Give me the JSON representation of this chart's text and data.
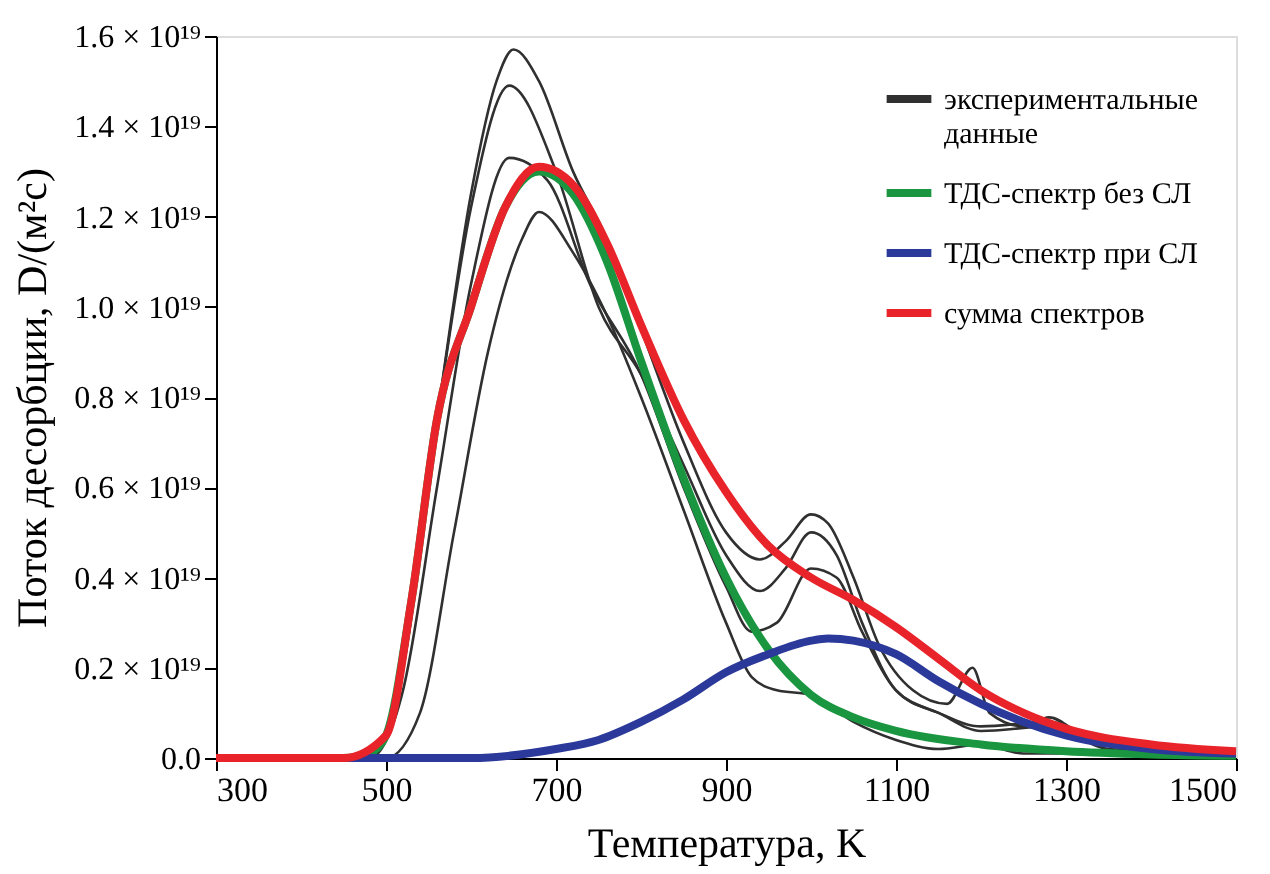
{
  "chart_data": {
    "type": "line",
    "xlabel": "Температура, K",
    "ylabel": "Поток десорбции, D/(м²c)",
    "xlim": [
      300,
      1500
    ],
    "xticks": [
      300,
      500,
      700,
      900,
      1100,
      1300,
      1500
    ],
    "ylim": [
      0,
      1.6e+19
    ],
    "yticks": [
      {
        "value": 0,
        "label": "0.0"
      },
      {
        "value": 2e+18,
        "label": "0.2 × 10¹⁹"
      },
      {
        "value": 4e+18,
        "label": "0.4 × 10¹⁹"
      },
      {
        "value": 6e+18,
        "label": "0.6 × 10¹⁹"
      },
      {
        "value": 8e+18,
        "label": "0.8 × 10¹⁹"
      },
      {
        "value": 1e+19,
        "label": "1.0 × 10¹⁹"
      },
      {
        "value": 1.2e+19,
        "label": "1.2 × 10¹⁹"
      },
      {
        "value": 1.4e+19,
        "label": "1.4 × 10¹⁹"
      },
      {
        "value": 1.6e+19,
        "label": "1.6 × 10¹⁹"
      }
    ],
    "grid": false,
    "legend": "top right",
    "marker": "none",
    "line_style": "solid",
    "series": [
      {
        "color": "#303030",
        "x": [
          300,
          480,
          520,
          560,
          600,
          630,
          650,
          680,
          720,
          760,
          800,
          850,
          900,
          940,
          970,
          1000,
          1020,
          1050,
          1080,
          1120,
          1160,
          1190,
          1210,
          1250,
          1280,
          1320,
          1400,
          1500
        ],
        "values": [
          0,
          0,
          2e+18,
          7.5e+18,
          1.25e+19,
          1.5e+19,
          1.57e+19,
          1.5e+19,
          1.3e+19,
          1.15e+19,
          9.5e+18,
          7e+18,
          5e+18,
          4.4e+18,
          4.8e+18,
          5.4e+18,
          5.2e+18,
          4e+18,
          2.5e+18,
          1.5e+18,
          1.2e+18,
          2e+18,
          1e+18,
          7e+17,
          9e+17,
          5e+17,
          2e+17,
          1e+17
        ]
      },
      {
        "color": "#303030",
        "x": [
          300,
          480,
          520,
          560,
          600,
          645,
          700,
          750,
          800,
          850,
          900,
          940,
          970,
          1000,
          1030,
          1060,
          1100,
          1150,
          1200,
          1280,
          1350,
          1500
        ],
        "values": [
          0,
          0,
          2e+18,
          7.5e+18,
          1.22e+19,
          1.49e+19,
          1.3e+19,
          1e+19,
          8.5e+18,
          6.5e+18,
          4.5e+18,
          3.7e+18,
          4.2e+18,
          5e+18,
          4.5e+18,
          3e+18,
          1.5e+18,
          1e+18,
          7e+17,
          8e+17,
          3e+17,
          1e+17
        ]
      },
      {
        "color": "#303030",
        "x": [
          300,
          480,
          520,
          560,
          600,
          645,
          690,
          740,
          800,
          850,
          900,
          930,
          960,
          1000,
          1030,
          1060,
          1100,
          1150,
          1200,
          1280,
          1350,
          1500
        ],
        "values": [
          0,
          0,
          1.5e+18,
          6e+18,
          1.05e+19,
          1.33e+19,
          1.28e+19,
          1.05e+19,
          8.5e+18,
          6e+18,
          3.8e+18,
          2.8e+18,
          3e+18,
          4.2e+18,
          4e+18,
          2.8e+18,
          1.5e+18,
          1e+18,
          6e+17,
          7e+17,
          2e+17,
          1e+17
        ]
      },
      {
        "name": "экспериментальные данные",
        "color": "#303030",
        "x": [
          300,
          500,
          540,
          580,
          620,
          660,
          680,
          720,
          760,
          800,
          850,
          900,
          930,
          960,
          1000,
          1050,
          1100,
          1150,
          1200,
          1250,
          1300,
          1500
        ],
        "values": [
          0,
          0,
          1e+18,
          5e+18,
          9e+18,
          1.15e+19,
          1.21e+19,
          1.12e+19,
          9.8e+18,
          8e+18,
          5.5e+18,
          3e+18,
          1.8e+18,
          1.5e+18,
          1.4e+18,
          8e+17,
          4e+17,
          2e+17,
          3e+17,
          1e+17,
          1e+17,
          5e+16
        ]
      },
      {
        "name": "ТДС-спектр без СЛ",
        "color": "#1a9641",
        "x": [
          300,
          450,
          480,
          500,
          530,
          560,
          600,
          640,
          680,
          720,
          760,
          800,
          850,
          900,
          950,
          1000,
          1050,
          1100,
          1200,
          1300,
          1400,
          1500
        ],
        "values": [
          0,
          0,
          1e+17,
          5e+17,
          3.5e+18,
          7.5e+18,
          1e+19,
          1.22e+19,
          1.3e+19,
          1.25e+19,
          1.1e+19,
          8.8e+18,
          6.2e+18,
          4e+18,
          2.4e+18,
          1.4e+18,
          9e+17,
          6e+17,
          3e+17,
          1.5e+17,
          8e+16,
          5e+16
        ]
      },
      {
        "name": "ТДС-спектр при СЛ",
        "color": "#2b3a9a",
        "x": [
          300,
          600,
          700,
          750,
          800,
          850,
          900,
          950,
          1000,
          1020,
          1050,
          1100,
          1150,
          1200,
          1250,
          1300,
          1400,
          1500
        ],
        "values": [
          0,
          0,
          2e+17,
          4e+17,
          8e+17,
          1.3e+18,
          1.9e+18,
          2.3e+18,
          2.6e+18,
          2.65e+18,
          2.6e+18,
          2.3e+18,
          1.7e+18,
          1.2e+18,
          8e+17,
          5e+17,
          2e+17,
          1e+17
        ]
      },
      {
        "name": "сумма спектров",
        "color": "#e8242a",
        "x": [
          300,
          450,
          500,
          530,
          560,
          600,
          640,
          680,
          720,
          760,
          800,
          850,
          900,
          950,
          1000,
          1050,
          1100,
          1150,
          1200,
          1250,
          1300,
          1400,
          1500
        ],
        "values": [
          0,
          0,
          5e+17,
          3.5e+18,
          7.5e+18,
          1e+19,
          1.22e+19,
          1.31e+19,
          1.27e+19,
          1.14e+19,
          9.6e+18,
          7.5e+18,
          5.9e+18,
          4.7e+18,
          4e+18,
          3.5e+18,
          2.9e+18,
          2.2e+18,
          1.5e+18,
          1e+18,
          6.5e+17,
          3e+17,
          1.5e+17
        ]
      }
    ]
  }
}
